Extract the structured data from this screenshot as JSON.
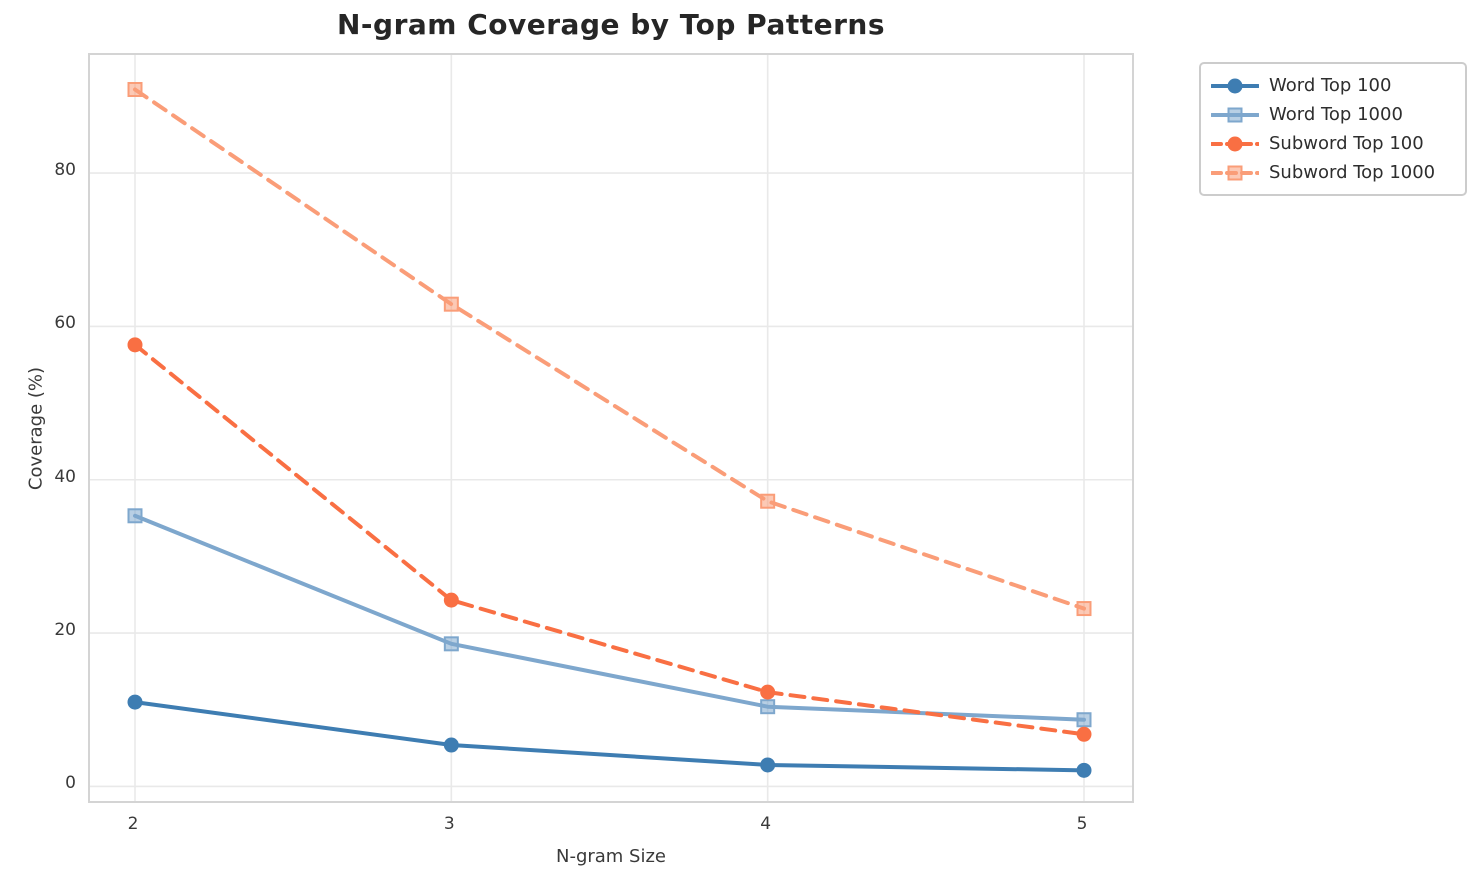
{
  "title": "N-gram Coverage by Top Patterns",
  "axes": {
    "xlabel": "N-gram Size",
    "ylabel": "Coverage (%)",
    "x_tick_labels": [
      "2",
      "3",
      "4",
      "5"
    ],
    "y_tick_labels": [
      "0",
      "20",
      "40",
      "60",
      "80"
    ]
  },
  "legend": {
    "position": "outside-top-right",
    "entries": [
      "Word Top 100",
      "Word Top 1000",
      "Subword Top 100",
      "Subword Top 1000"
    ]
  },
  "colors": {
    "word_top_100": "#3e7db2",
    "word_top_1000": "#7ea7cd",
    "subword_top_100": "#f96f43",
    "subword_top_1000": "#fa9d78",
    "gridline": "#e9e9e9",
    "spine": "#d4d4d4",
    "title_text": "#262626",
    "tick_text": "#3a3a3a"
  },
  "chart_data": {
    "type": "line",
    "title": "N-gram Coverage by Top Patterns",
    "xlabel": "N-gram Size",
    "ylabel": "Coverage (%)",
    "x": [
      2,
      3,
      4,
      5
    ],
    "y_ticks": [
      0,
      20,
      40,
      60,
      80
    ],
    "ylim": [
      -1.9,
      95.4
    ],
    "grid": true,
    "legend_position": "outside-top-right",
    "series": [
      {
        "name": "Word Top 100",
        "values": [
          11.0,
          5.4,
          2.8,
          2.1
        ],
        "color": "#3e7db2",
        "marker": "circle",
        "line": "solid"
      },
      {
        "name": "Word Top 1000",
        "values": [
          35.3,
          18.6,
          10.4,
          8.7
        ],
        "color": "#7ea7cd",
        "marker": "square",
        "line": "solid"
      },
      {
        "name": "Subword Top 100",
        "values": [
          57.6,
          24.3,
          12.3,
          6.8
        ],
        "color": "#f96f43",
        "marker": "circle",
        "line": "dashed"
      },
      {
        "name": "Subword Top 1000",
        "values": [
          90.9,
          62.9,
          37.2,
          23.2
        ],
        "color": "#fa9d78",
        "marker": "square",
        "line": "dashed"
      }
    ]
  }
}
